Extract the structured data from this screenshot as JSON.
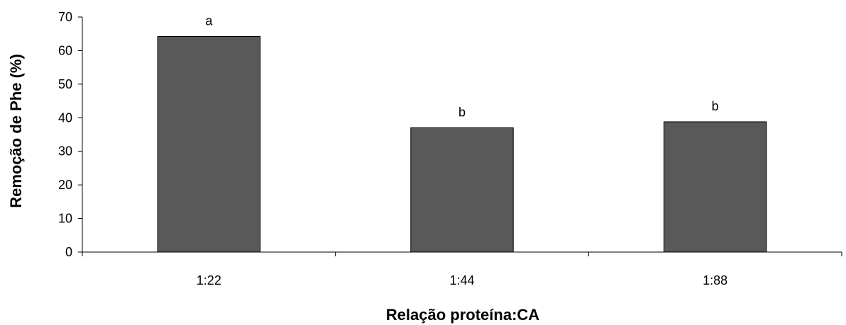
{
  "chart_data": {
    "type": "bar",
    "categories": [
      "1:22",
      "1:44",
      "1:88"
    ],
    "values": [
      64.2,
      37.0,
      38.8
    ],
    "data_labels": [
      "a",
      "b",
      "b"
    ],
    "title": "",
    "xlabel": "Relação proteína:CA",
    "ylabel": "Remoção de Phe (%)",
    "ylim": [
      0,
      70
    ],
    "yticks": [
      0,
      10,
      20,
      30,
      40,
      50,
      60,
      70
    ],
    "grid": false,
    "legend": "none",
    "bar_color": "#595959",
    "bar_edge_color": "#000000"
  }
}
